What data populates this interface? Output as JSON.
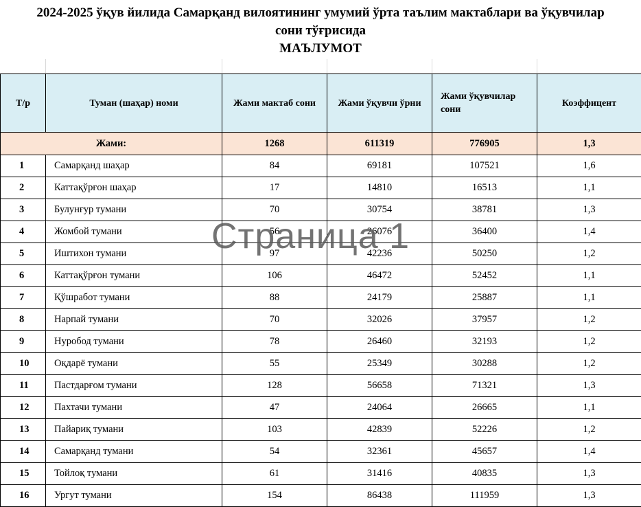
{
  "title": {
    "line1": "2024-2025 ўқув йилида Самарқанд вилоятининг умумий ўрта таълим мактаблари ва ўқувчилар",
    "line2": "сони тўғрисида",
    "line3": "МАЪЛУМОТ"
  },
  "table": {
    "headers": {
      "num": "Т/р",
      "name": "Туман (шаҳар) номи",
      "schools": "Жами мактаб сони",
      "places": "Жами ўқувчи ўрни",
      "students": "Жами ўқувчилар сони",
      "coef": "Коэффицент"
    },
    "total": {
      "label": "Жами:",
      "schools": "1268",
      "places": "611319",
      "students": "776905",
      "coef": "1,3"
    },
    "rows": [
      {
        "num": "1",
        "name": "Самарқанд шаҳар",
        "schools": "84",
        "places": "69181",
        "students": "107521",
        "coef": "1,6"
      },
      {
        "num": "2",
        "name": "Каттақўрғон шаҳар",
        "schools": "17",
        "places": "14810",
        "students": "16513",
        "coef": "1,1"
      },
      {
        "num": "3",
        "name": "Булунғур тумани",
        "schools": "70",
        "places": "30754",
        "students": "38781",
        "coef": "1,3"
      },
      {
        "num": "4",
        "name": "Жомбой тумани",
        "schools": "56",
        "places": "26076",
        "students": "36400",
        "coef": "1,4"
      },
      {
        "num": "5",
        "name": "Иштихон тумани",
        "schools": "97",
        "places": "42236",
        "students": "50250",
        "coef": "1,2"
      },
      {
        "num": "6",
        "name": "Каттақўрғон тумани",
        "schools": "106",
        "places": "46472",
        "students": "52452",
        "coef": "1,1"
      },
      {
        "num": "7",
        "name": "Қўшработ тумани",
        "schools": "88",
        "places": "24179",
        "students": "25887",
        "coef": "1,1"
      },
      {
        "num": "8",
        "name": "Нарпай тумани",
        "schools": "70",
        "places": "32026",
        "students": "37957",
        "coef": "1,2"
      },
      {
        "num": "9",
        "name": "Нуробод тумани",
        "schools": "78",
        "places": "26460",
        "students": "32193",
        "coef": "1,2"
      },
      {
        "num": "10",
        "name": "Оқдарё тумани",
        "schools": "55",
        "places": "25349",
        "students": "30288",
        "coef": "1,2"
      },
      {
        "num": "11",
        "name": "Пастдарғом тумани",
        "schools": "128",
        "places": "56658",
        "students": "71321",
        "coef": "1,3"
      },
      {
        "num": "12",
        "name": "Пахтачи тумани",
        "schools": "47",
        "places": "24064",
        "students": "26665",
        "coef": "1,1"
      },
      {
        "num": "13",
        "name": "Пайариқ тумани",
        "schools": "103",
        "places": "42839",
        "students": "52226",
        "coef": "1,2"
      },
      {
        "num": "14",
        "name": "Самарқанд тумани",
        "schools": "54",
        "places": "32361",
        "students": "45657",
        "coef": "1,4"
      },
      {
        "num": "15",
        "name": "Тойлоқ тумани",
        "schools": "61",
        "places": "31416",
        "students": "40835",
        "coef": "1,3"
      },
      {
        "num": "16",
        "name": "Ургут тумани",
        "schools": "154",
        "places": "86438",
        "students": "111959",
        "coef": "1,3"
      }
    ]
  },
  "watermark": "Страница 1"
}
